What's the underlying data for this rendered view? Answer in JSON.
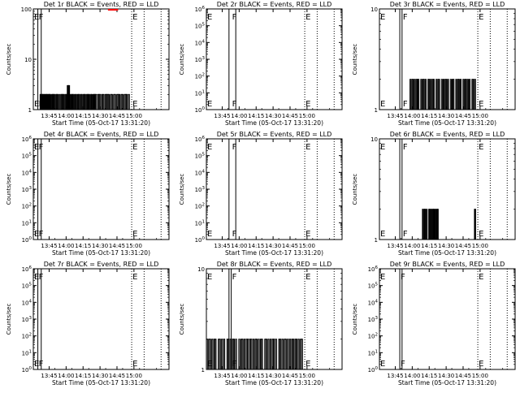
{
  "common": {
    "xlabel": "Start Time (05-Oct-17 13:31:20)",
    "ylabel": "Counts/sec",
    "xtick_labels": [
      "13:45",
      "14:00",
      "14:15",
      "14:30",
      "14:45",
      "15:00"
    ],
    "marker_E": "E",
    "marker_F": "F",
    "event_color": "#000000",
    "lld_color": "#ff0000"
  },
  "chart_data": [
    {
      "type": "bar",
      "title": "Det 1r BLACK = Events, RED = LLD",
      "xlabel": "Start Time (05-Oct-17 13:31:20)",
      "ylabel": "Counts/sec",
      "yscale": "log",
      "ylim": [
        1,
        100
      ],
      "ytick_values": [
        1,
        10,
        100
      ],
      "ytick_labels": [
        "1",
        "10",
        "100"
      ],
      "xlim_minutes": [
        0,
        120
      ],
      "markers": {
        "E_minutes": [
          0,
          87
        ],
        "F_minutes": [
          4
        ]
      },
      "solid_lines_minutes": [
        4,
        7
      ],
      "dotted_lines_minutes": [
        87,
        98,
        113
      ],
      "lld": {
        "value": 100,
        "start_minutes": 66,
        "end_minutes": 75
      },
      "events": [
        {
          "start": 6,
          "end": 14,
          "value": 2,
          "pattern": [
            1,
            1,
            0,
            1,
            1,
            1,
            0,
            1,
            1,
            0,
            1,
            1,
            1,
            0,
            1,
            1
          ]
        },
        {
          "start": 14,
          "end": 55,
          "value": 2,
          "pattern": [
            1,
            1,
            0,
            1,
            1,
            1,
            1,
            0,
            1,
            1,
            1,
            0,
            1,
            0,
            1,
            1,
            1,
            1,
            0,
            1,
            1,
            1,
            0,
            1,
            1,
            0,
            1,
            1,
            1,
            1,
            0,
            1,
            1,
            0,
            1,
            1,
            1,
            0,
            1,
            1,
            0,
            1,
            1,
            1,
            0,
            1,
            1,
            1,
            1,
            0,
            1,
            1,
            0,
            1,
            1,
            1
          ]
        },
        {
          "start": 30,
          "end": 32,
          "value": 3,
          "pattern": [
            1,
            1,
            1,
            1
          ]
        },
        {
          "start": 55,
          "end": 85,
          "value": 2,
          "pattern": [
            1,
            0,
            1,
            1,
            1,
            0,
            1,
            1,
            0,
            1,
            1,
            1,
            1,
            0,
            1,
            1,
            0,
            1,
            1,
            0,
            1,
            1,
            1,
            0,
            1,
            1,
            0,
            1,
            1,
            1,
            0,
            1
          ]
        }
      ]
    },
    {
      "type": "bar",
      "title": "Det 2r BLACK = Events, RED = LLD",
      "xlabel": "Start Time (05-Oct-17 13:31:20)",
      "ylabel": "Counts/sec",
      "yscale": "log",
      "ylim": [
        1,
        1000000
      ],
      "ytick_values": [
        1,
        10,
        100,
        1000,
        10000,
        100000,
        1000000
      ],
      "ytick_labels": [
        "10^0",
        "10^1",
        "10^2",
        "10^3",
        "10^4",
        "10^5",
        "10^6"
      ],
      "xlim_minutes": [
        0,
        120
      ],
      "markers": {
        "E_minutes": [
          0,
          87
        ],
        "F_minutes": [
          22
        ]
      },
      "solid_lines_minutes": [
        20,
        26
      ],
      "dotted_lines_minutes": [
        87,
        98,
        113
      ],
      "events": []
    },
    {
      "type": "bar",
      "title": "Det 3r BLACK = Events, RED = LLD",
      "xlabel": "Start Time (05-Oct-17 13:31:20)",
      "ylabel": "Counts/sec",
      "yscale": "log",
      "ylim": [
        1,
        10
      ],
      "ytick_values": [
        1,
        10
      ],
      "ytick_labels": [
        "1",
        "10"
      ],
      "xlim_minutes": [
        0,
        120
      ],
      "markers": {
        "E_minutes": [
          0,
          87
        ],
        "F_minutes": [
          20
        ]
      },
      "solid_lines_minutes": [
        18,
        20
      ],
      "dotted_lines_minutes": [
        87,
        98,
        113
      ],
      "events": [
        {
          "start": 27,
          "end": 85,
          "value": 2,
          "pattern": [
            1,
            0,
            1,
            1,
            0,
            1,
            0,
            1,
            1,
            1,
            0,
            0,
            1,
            0,
            1,
            1,
            0,
            1,
            0,
            0,
            1,
            1,
            0,
            1,
            0,
            1,
            1,
            0,
            0,
            1,
            0,
            1,
            1,
            0,
            0,
            1,
            0,
            1,
            0,
            1,
            1,
            0,
            1,
            0,
            0,
            1,
            0,
            1,
            1,
            0,
            0,
            1,
            0,
            1,
            1,
            0,
            1,
            0,
            0,
            1,
            0,
            1,
            1,
            0,
            1,
            0,
            1,
            0,
            0,
            1,
            1,
            0,
            1
          ]
        }
      ]
    },
    {
      "type": "bar",
      "title": "Det 4r BLACK = Events, RED = LLD",
      "xlabel": "Start Time (05-Oct-17 13:31:20)",
      "ylabel": "Counts/sec",
      "yscale": "log",
      "ylim": [
        1,
        1000000
      ],
      "ytick_values": [
        1,
        10,
        100,
        1000,
        10000,
        100000,
        1000000
      ],
      "ytick_labels": [
        "10^0",
        "10^1",
        "10^2",
        "10^3",
        "10^4",
        "10^5",
        "10^6"
      ],
      "xlim_minutes": [
        0,
        120
      ],
      "markers": {
        "E_minutes": [
          0,
          87
        ],
        "F_minutes": [
          4
        ]
      },
      "solid_lines_minutes": [
        4,
        7
      ],
      "dotted_lines_minutes": [
        87,
        98,
        113
      ],
      "events": []
    },
    {
      "type": "bar",
      "title": "Det 5r BLACK = Events, RED = LLD",
      "xlabel": "Start Time (05-Oct-17 13:31:20)",
      "ylabel": "Counts/sec",
      "yscale": "log",
      "ylim": [
        1,
        1000000
      ],
      "ytick_values": [
        1,
        10,
        100,
        1000,
        10000,
        100000,
        1000000
      ],
      "ytick_labels": [
        "10^0",
        "10^1",
        "10^2",
        "10^3",
        "10^4",
        "10^5",
        "10^6"
      ],
      "xlim_minutes": [
        0,
        120
      ],
      "markers": {
        "E_minutes": [
          0,
          87
        ],
        "F_minutes": [
          22
        ]
      },
      "solid_lines_minutes": [
        20,
        26
      ],
      "dotted_lines_minutes": [
        87,
        98,
        113
      ],
      "events": []
    },
    {
      "type": "bar",
      "title": "Det 6r BLACK = Events, RED = LLD",
      "xlabel": "Start Time (05-Oct-17 13:31:20)",
      "ylabel": "Counts/sec",
      "yscale": "log",
      "ylim": [
        1,
        10
      ],
      "ytick_values": [
        1,
        10
      ],
      "ytick_labels": [
        "1",
        "10"
      ],
      "xlim_minutes": [
        0,
        120
      ],
      "markers": {
        "E_minutes": [
          0,
          87
        ],
        "F_minutes": [
          20
        ]
      },
      "solid_lines_minutes": [
        18,
        20
      ],
      "dotted_lines_minutes": [
        87,
        98,
        113
      ],
      "events": [
        {
          "start": 38,
          "end": 52,
          "value": 2,
          "pattern": [
            1,
            0,
            1,
            1,
            0,
            1,
            0,
            0,
            1,
            1,
            0,
            1,
            0,
            1,
            1,
            0,
            1,
            0,
            1,
            1
          ]
        },
        {
          "start": 84,
          "end": 85,
          "value": 2,
          "pattern": [
            1,
            1
          ]
        }
      ]
    },
    {
      "type": "bar",
      "title": "Det 7r BLACK = Events, RED = LLD",
      "xlabel": "Start Time (05-Oct-17 13:31:20)",
      "ylabel": "Counts/sec",
      "yscale": "log",
      "ylim": [
        1,
        1000000
      ],
      "ytick_values": [
        1,
        10,
        100,
        1000,
        10000,
        100000,
        1000000
      ],
      "ytick_labels": [
        "10^0",
        "10^1",
        "10^2",
        "10^3",
        "10^4",
        "10^5",
        "10^6"
      ],
      "xlim_minutes": [
        0,
        120
      ],
      "markers": {
        "E_minutes": [
          0,
          87
        ],
        "F_minutes": [
          4
        ]
      },
      "solid_lines_minutes": [
        4,
        7
      ],
      "dotted_lines_minutes": [
        87,
        98,
        113
      ],
      "events": []
    },
    {
      "type": "bar",
      "title": "Det 8r BLACK = Events, RED = LLD",
      "xlabel": "Start Time (05-Oct-17 13:31:20)",
      "ylabel": "Counts/sec",
      "yscale": "log",
      "ylim": [
        1,
        10
      ],
      "ytick_values": [
        1,
        10
      ],
      "ytick_labels": [
        "1",
        "10"
      ],
      "xlim_minutes": [
        0,
        120
      ],
      "markers": {
        "E_minutes": [
          0,
          87
        ],
        "F_minutes": [
          22
        ]
      },
      "solid_lines_minutes": [
        20,
        22
      ],
      "dotted_lines_minutes": [
        87,
        98,
        113
      ],
      "events": [
        {
          "start": 0,
          "end": 85,
          "value": 2,
          "pattern": [
            1,
            0,
            1,
            1,
            0,
            1,
            0,
            1,
            1,
            0,
            0,
            1,
            1,
            0,
            1,
            0,
            1,
            0,
            0,
            1,
            1,
            0,
            1,
            0,
            1,
            1,
            0,
            1,
            0,
            0,
            1,
            0,
            1,
            1,
            0,
            1,
            0,
            1,
            1,
            0,
            1,
            1,
            0,
            1,
            0,
            1,
            1,
            0,
            1,
            0,
            1,
            1,
            0,
            0,
            1,
            1,
            0,
            1,
            0,
            1,
            0,
            1,
            1,
            0,
            1,
            0,
            0,
            1,
            1,
            0,
            1,
            0,
            1,
            1,
            0,
            1,
            0,
            1,
            0,
            1,
            1,
            0,
            1,
            1,
            0,
            1,
            0,
            1,
            1
          ]
        }
      ]
    },
    {
      "type": "bar",
      "title": "Det 9r BLACK = Events, RED = LLD",
      "xlabel": "Start Time (05-Oct-17 13:31:20)",
      "ylabel": "Counts/sec",
      "yscale": "log",
      "ylim": [
        1,
        1000000
      ],
      "ytick_values": [
        1,
        10,
        100,
        1000,
        10000,
        100000,
        1000000
      ],
      "ytick_labels": [
        "10^0",
        "10^1",
        "10^2",
        "10^3",
        "10^4",
        "10^5",
        "10^6"
      ],
      "xlim_minutes": [
        0,
        120
      ],
      "markers": {
        "E_minutes": [
          0,
          87
        ],
        "F_minutes": [
          18
        ]
      },
      "solid_lines_minutes": [
        18,
        20
      ],
      "dotted_lines_minutes": [
        87,
        98,
        113
      ],
      "events": []
    }
  ]
}
